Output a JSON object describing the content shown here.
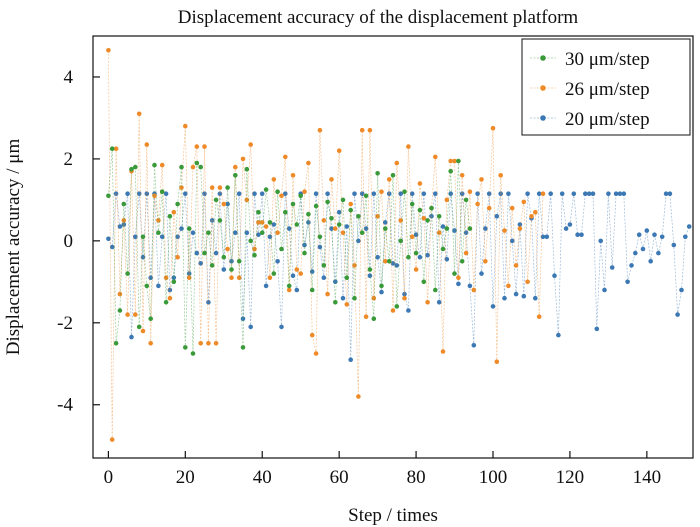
{
  "chart_data": {
    "type": "line",
    "title": "Displacement accuracy of the displacement platform",
    "xlabel": "Step / times",
    "ylabel": "Displacement accuracy / μm",
    "xlim": [
      -4,
      152
    ],
    "ylim": [
      -5.3,
      5.0
    ],
    "xticks": [
      0,
      20,
      40,
      60,
      80,
      100,
      120,
      140
    ],
    "yticks": [
      -4,
      -2,
      0,
      2,
      4
    ],
    "grid": false,
    "legend_position": "top-right",
    "series": [
      {
        "name": "30 μm/step",
        "color": "#3a9a3a",
        "values": [
          1.1,
          2.25,
          -2.5,
          -1.7,
          0.9,
          -0.8,
          1.75,
          1.8,
          -2.1,
          0.1,
          -1.1,
          -1.9,
          1.85,
          0.2,
          1.2,
          -1.5,
          0.6,
          -1.0,
          0.9,
          1.8,
          -2.6,
          0.3,
          -2.75,
          1.9,
          1.8,
          -0.3,
          0.2,
          -0.6,
          1.0,
          0.5,
          -0.4,
          1.3,
          -0.7,
          1.6,
          -0.5,
          -2.6,
          1.75,
          0.0,
          -0.35,
          0.7,
          0.2,
          1.25,
          0.45,
          -0.8,
          1.2,
          -0.2,
          0.7,
          -1.1,
          0.9,
          0.4,
          1.1,
          -0.3,
          0.65,
          -1.2,
          0.85,
          0.1,
          -0.6,
          0.95,
          0.55,
          -1.5,
          0.4,
          1.0,
          -0.9,
          0.75,
          -1.4,
          0.6,
          0.2,
          1.1,
          -0.7,
          -1.9,
          1.65,
          -1.1,
          0.3,
          -0.5,
          1.6,
          -1.6,
          0.0,
          1.2,
          -0.4,
          0.9,
          -0.3,
          0.75,
          -1.0,
          0.5,
          0.8,
          -1.2,
          0.6,
          -0.2,
          0.3,
          1.7,
          -0.8,
          1.95,
          -0.5,
          1.0,
          0.3
        ]
      },
      {
        "name": "26 μm/step",
        "color": "#ef8a28",
        "values": [
          4.65,
          -4.85,
          2.25,
          -1.3,
          0.5,
          -1.8,
          1.7,
          -1.8,
          3.1,
          -2.2,
          2.35,
          -2.5,
          1.1,
          0.5,
          1.85,
          -0.9,
          -1.4,
          0.7,
          -0.4,
          1.3,
          2.8,
          -0.9,
          1.8,
          2.3,
          -2.5,
          2.3,
          -2.5,
          1.3,
          -2.5,
          1.3,
          0.9,
          -0.2,
          -0.9,
          1.8,
          -0.9,
          2.0,
          1.0,
          2.35,
          -0.2,
          0.45,
          0.45,
          0.35,
          -0.9,
          1.5,
          0.2,
          1.1,
          2.05,
          -1.2,
          1.6,
          -0.7,
          -0.8,
          1.2,
          1.9,
          -2.3,
          -2.75,
          2.7,
          0.5,
          -1.3,
          1.5,
          0.3,
          2.2,
          0.2,
          -1.55,
          0.9,
          -0.6,
          -3.8,
          2.7,
          -1.85,
          2.7,
          -1.4,
          0.6,
          1.2,
          -0.5,
          1.5,
          -1.7,
          1.9,
          0.5,
          -1.4,
          2.3,
          0.1,
          -0.7,
          1.4,
          0.55,
          -1.5,
          0.8,
          2.05,
          0.2,
          -2.7,
          1.0,
          1.95,
          1.95,
          -0.9,
          1.6,
          -0.3,
          1.2,
          -1.2,
          0.9,
          1.5,
          -0.5,
          0.8,
          2.75,
          -2.95,
          1.6,
          0.25,
          -1.1,
          0.8,
          -0.6,
          0.3,
          0.95,
          -1.0,
          0.6,
          0.7,
          -1.85,
          1.15
        ]
      },
      {
        "name": "20 μm/step",
        "color": "#3b78b4",
        "values": [
          0.05,
          -0.15,
          1.15,
          0.35,
          0.4,
          1.15,
          -2.35,
          0.1,
          1.15,
          -0.4,
          1.15,
          -0.9,
          1.15,
          -1.1,
          0.1,
          1.15,
          -1.2,
          -0.9,
          0.1,
          0.3,
          1.15,
          -0.8,
          0.2,
          -0.3,
          -0.55,
          1.15,
          -1.5,
          0.5,
          -0.3,
          1.15,
          -0.7,
          0.9,
          -0.5,
          0.2,
          1.15,
          -1.9,
          0.2,
          -2.1,
          1.15,
          0.15,
          1.15,
          -1.1,
          0.1,
          0.4,
          -0.5,
          -2.1,
          1.15,
          0.3,
          -0.85,
          -1.2,
          1.15,
          -0.1,
          0.45,
          -0.75,
          1.15,
          -0.15,
          -0.9,
          1.15,
          0.3,
          -1.0,
          0.7,
          -1.4,
          0.35,
          -2.9,
          1.15,
          0.0,
          1.15,
          0.3,
          -0.85,
          1.15,
          -0.4,
          -1.25,
          0.45,
          1.15,
          -0.55,
          -0.6,
          1.15,
          -1.3,
          -1.7,
          1.15,
          0.15,
          -0.4,
          1.15,
          -0.35,
          0.6,
          1.15,
          -1.5,
          0.35,
          -0.45,
          1.15,
          0.25,
          -1.05,
          1.15,
          0.2,
          -1.1,
          -2.55,
          1.15,
          -0.8,
          0.3,
          1.15,
          -1.6,
          0.6,
          1.15,
          -1.4,
          1.15,
          0.0,
          -1.3,
          0.4,
          -1.35,
          1.15,
          0.55,
          -1.4,
          1.15,
          0.1,
          0.1,
          1.15,
          -0.85,
          -2.3,
          1.15,
          0.3,
          0.4,
          1.15,
          0.15,
          0.15,
          1.15,
          1.15,
          1.15,
          -2.15,
          0.0,
          -1.2,
          1.15,
          -0.65,
          1.15,
          1.15,
          1.15,
          -1.0,
          -0.6,
          -0.3,
          0.15,
          -0.2,
          0.25,
          -0.5,
          0.15,
          -0.3,
          0.1,
          1.15,
          1.15,
          -0.1,
          -1.8,
          -1.2,
          0.1,
          0.35
        ]
      }
    ]
  }
}
